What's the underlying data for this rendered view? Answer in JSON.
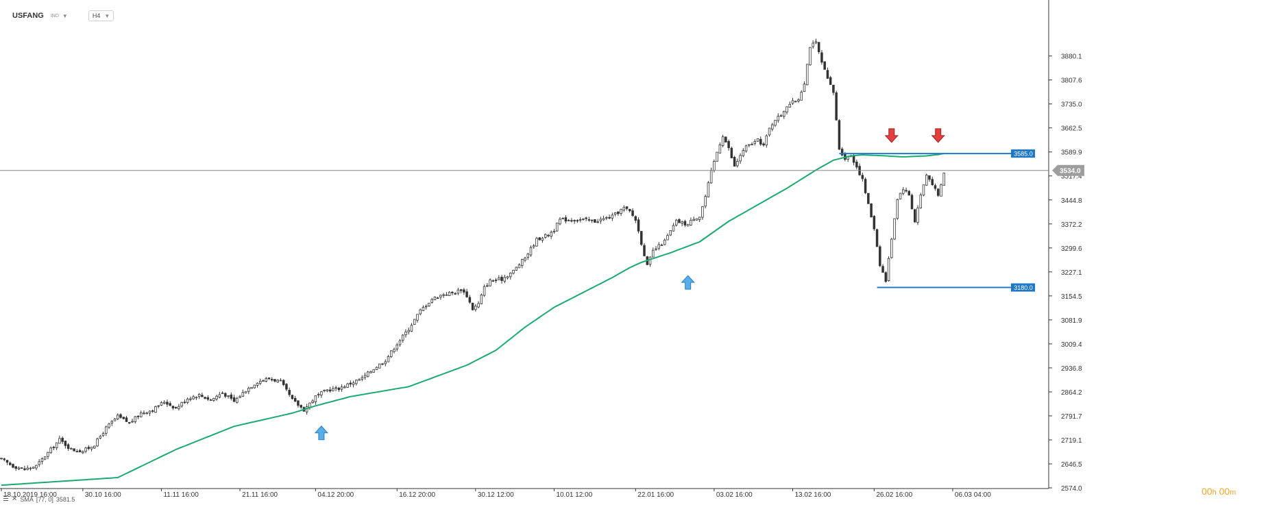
{
  "header": {
    "symbol": "USFANG",
    "symbol_type": "IND",
    "timeframe": "H4"
  },
  "indicator": {
    "label": "SMA",
    "params": "[77, 0]",
    "value": "3581.5",
    "color": "#1aaa6f"
  },
  "timer": {
    "hours": "00",
    "h_unit": "h",
    "minutes": "00",
    "m_unit": "m"
  },
  "colors": {
    "candle_up": "#ffffff",
    "candle_down": "#333333",
    "sma": "#1aaa6f",
    "level_line": "#1e78c6",
    "label_bg": "#1e78c6",
    "price_badge": "#9e9e9e",
    "arrow_up": "#5aaee8",
    "arrow_down": "#e04040"
  },
  "chart_data": {
    "type": "candlestick",
    "timeframe": "H4",
    "ylim": [
      2574.0,
      3952.0
    ],
    "xlim_bars": [
      0,
      360
    ],
    "y_ticks": [
      "3880.1",
      "3807.6",
      "3735.0",
      "3662.5",
      "3589.9",
      "3517.4",
      "3444.8",
      "3372.2",
      "3299.6",
      "3227.1",
      "3154.5",
      "3081.9",
      "3009.4",
      "2936.8",
      "2864.2",
      "2791.7",
      "2719.1",
      "2646.5",
      "2574.0"
    ],
    "x_ticks": [
      {
        "label": "18.10.2019  16:00",
        "bar": 0
      },
      {
        "label": "30.10  16:00",
        "bar": 28
      },
      {
        "label": "11.11  16:00",
        "bar": 55
      },
      {
        "label": "21.11  16:00",
        "bar": 82
      },
      {
        "label": "04.12  20:00",
        "bar": 108
      },
      {
        "label": "16.12  20:00",
        "bar": 136
      },
      {
        "label": "30.12  12:00",
        "bar": 163
      },
      {
        "label": "10.01  12:00",
        "bar": 190
      },
      {
        "label": "22.01  16:00",
        "bar": 218
      },
      {
        "label": "03.02  16:00",
        "bar": 245
      },
      {
        "label": "13.02  16:00",
        "bar": 272
      },
      {
        "label": "26.02  16:00",
        "bar": 300
      },
      {
        "label": "06.03  04:00",
        "bar": 327
      }
    ],
    "close_anchors": [
      [
        0,
        2660
      ],
      [
        4,
        2640
      ],
      [
        8,
        2630
      ],
      [
        12,
        2640
      ],
      [
        16,
        2680
      ],
      [
        20,
        2720
      ],
      [
        24,
        2690
      ],
      [
        28,
        2685
      ],
      [
        32,
        2705
      ],
      [
        36,
        2755
      ],
      [
        40,
        2790
      ],
      [
        44,
        2770
      ],
      [
        48,
        2800
      ],
      [
        52,
        2810
      ],
      [
        56,
        2835
      ],
      [
        60,
        2815
      ],
      [
        64,
        2845
      ],
      [
        68,
        2855
      ],
      [
        72,
        2840
      ],
      [
        76,
        2862
      ],
      [
        80,
        2835
      ],
      [
        84,
        2870
      ],
      [
        88,
        2895
      ],
      [
        92,
        2905
      ],
      [
        96,
        2895
      ],
      [
        100,
        2840
      ],
      [
        104,
        2810
      ],
      [
        108,
        2850
      ],
      [
        112,
        2870
      ],
      [
        116,
        2875
      ],
      [
        120,
        2890
      ],
      [
        124,
        2905
      ],
      [
        128,
        2935
      ],
      [
        132,
        2960
      ],
      [
        136,
        3010
      ],
      [
        140,
        3055
      ],
      [
        144,
        3110
      ],
      [
        148,
        3145
      ],
      [
        152,
        3160
      ],
      [
        156,
        3165
      ],
      [
        158,
        3175
      ],
      [
        160,
        3155
      ],
      [
        162,
        3115
      ],
      [
        164,
        3130
      ],
      [
        166,
        3180
      ],
      [
        168,
        3200
      ],
      [
        172,
        3205
      ],
      [
        176,
        3230
      ],
      [
        180,
        3270
      ],
      [
        184,
        3325
      ],
      [
        188,
        3340
      ],
      [
        190,
        3355
      ],
      [
        192,
        3385
      ],
      [
        196,
        3385
      ],
      [
        200,
        3385
      ],
      [
        204,
        3380
      ],
      [
        206,
        3385
      ],
      [
        210,
        3395
      ],
      [
        214,
        3420
      ],
      [
        216,
        3410
      ],
      [
        218,
        3385
      ],
      [
        222,
        3245
      ],
      [
        224,
        3290
      ],
      [
        228,
        3320
      ],
      [
        232,
        3380
      ],
      [
        236,
        3370
      ],
      [
        238,
        3390
      ],
      [
        240,
        3395
      ],
      [
        242,
        3455
      ],
      [
        244,
        3530
      ],
      [
        246,
        3590
      ],
      [
        248,
        3640
      ],
      [
        250,
        3600
      ],
      [
        252,
        3545
      ],
      [
        254,
        3580
      ],
      [
        256,
        3605
      ],
      [
        260,
        3625
      ],
      [
        262,
        3610
      ],
      [
        264,
        3660
      ],
      [
        266,
        3690
      ],
      [
        268,
        3700
      ],
      [
        270,
        3730
      ],
      [
        272,
        3740
      ],
      [
        274,
        3750
      ],
      [
        276,
        3800
      ],
      [
        278,
        3910
      ],
      [
        280,
        3920
      ],
      [
        282,
        3860
      ],
      [
        284,
        3810
      ],
      [
        286,
        3770
      ],
      [
        288,
        3600
      ],
      [
        290,
        3570
      ],
      [
        292,
        3580
      ],
      [
        294,
        3545
      ],
      [
        296,
        3505
      ],
      [
        298,
        3430
      ],
      [
        300,
        3360
      ],
      [
        302,
        3250
      ],
      [
        304,
        3200
      ],
      [
        306,
        3330
      ],
      [
        308,
        3450
      ],
      [
        310,
        3480
      ],
      [
        312,
        3460
      ],
      [
        314,
        3380
      ],
      [
        316,
        3460
      ],
      [
        318,
        3520
      ],
      [
        320,
        3495
      ],
      [
        322,
        3455
      ],
      [
        324,
        3525
      ]
    ],
    "sma_period": 77,
    "sma_anchors": [
      [
        0,
        2582
      ],
      [
        40,
        2605
      ],
      [
        60,
        2690
      ],
      [
        80,
        2760
      ],
      [
        100,
        2800
      ],
      [
        108,
        2822
      ],
      [
        120,
        2850
      ],
      [
        140,
        2880
      ],
      [
        160,
        2945
      ],
      [
        170,
        2990
      ],
      [
        180,
        3060
      ],
      [
        190,
        3120
      ],
      [
        200,
        3165
      ],
      [
        210,
        3210
      ],
      [
        216,
        3240
      ],
      [
        220,
        3256
      ],
      [
        230,
        3285
      ],
      [
        240,
        3318
      ],
      [
        250,
        3380
      ],
      [
        260,
        3430
      ],
      [
        270,
        3480
      ],
      [
        280,
        3535
      ],
      [
        286,
        3565
      ],
      [
        292,
        3578
      ],
      [
        296,
        3581
      ],
      [
        304,
        3578
      ],
      [
        310,
        3575
      ],
      [
        318,
        3578
      ],
      [
        322,
        3582
      ],
      [
        324,
        3585
      ]
    ],
    "levels": [
      {
        "value": 3585.0,
        "label": "3585.0",
        "from_bar": 288
      },
      {
        "value": 3180.0,
        "label": "3180.0",
        "from_bar": 301
      }
    ],
    "current_price": {
      "value": 3534.0,
      "label": "3534.0"
    },
    "signals": [
      {
        "type": "buy",
        "bar": 110,
        "price": 2790
      },
      {
        "type": "buy",
        "bar": 236,
        "price": 3245
      },
      {
        "type": "sell",
        "bar": 306,
        "price": 3598
      },
      {
        "type": "sell",
        "bar": 322,
        "price": 3598
      }
    ]
  }
}
